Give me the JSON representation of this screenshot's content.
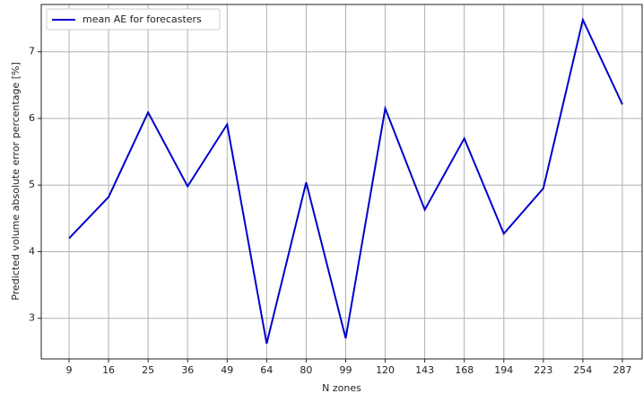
{
  "chart_data": {
    "type": "line",
    "x_label": "N zones",
    "y_label": "Predicted volume absolute error percentage [%]",
    "categories": [
      "9",
      "16",
      "25",
      "36",
      "49",
      "64",
      "80",
      "99",
      "120",
      "143",
      "168",
      "194",
      "223",
      "254",
      "287"
    ],
    "series": [
      {
        "name": "mean AE for forecasters",
        "color": "#0000cc",
        "values": [
          4.2,
          4.82,
          6.09,
          4.98,
          5.91,
          2.62,
          5.04,
          2.7,
          6.15,
          4.63,
          5.7,
          4.27,
          4.95,
          7.48,
          6.21
        ]
      }
    ],
    "ylim": [
      2.39,
      7.71
    ],
    "yticks": [
      3,
      4,
      5,
      6,
      7
    ],
    "grid": true,
    "legend": "upper left"
  }
}
